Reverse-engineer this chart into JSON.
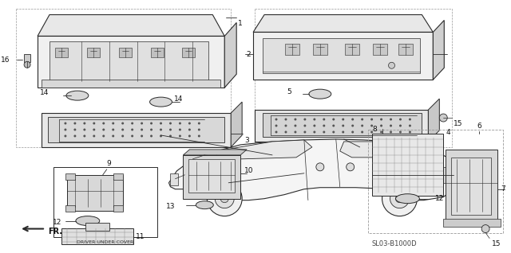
{
  "bg_color": "#ffffff",
  "fig_width": 6.4,
  "fig_height": 3.18,
  "diagram_code": "SL03-B1000D",
  "line_color": "#2a2a2a",
  "light_gray": "#cccccc",
  "mid_gray": "#aaaaaa",
  "dark_gray": "#555555",
  "text_color": "#111111",
  "label_fs": 6.5,
  "small_fs": 5.0
}
